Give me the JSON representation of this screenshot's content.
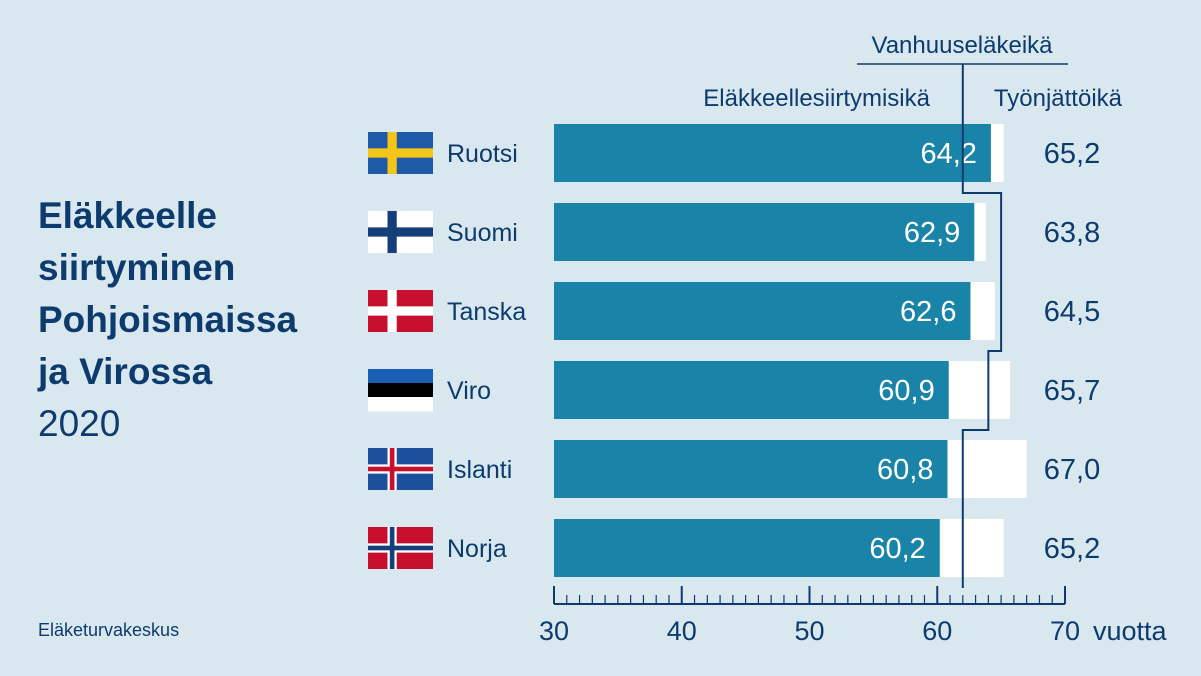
{
  "title": {
    "lines": [
      "Eläkkeelle",
      "siirtyminen",
      "Pohjoismaissa",
      "ja Virossa"
    ],
    "year": "2020"
  },
  "source": "Eläketurvakeskus",
  "colors": {
    "background": "#d9e8ef",
    "bar": "#1a84a8",
    "exit_bar": "#ffffff",
    "text": "#0d3b6e",
    "bar_label": "#ffffff"
  },
  "chart_data": {
    "type": "bar",
    "orientation": "horizontal",
    "categories": [
      "Ruotsi",
      "Suomi",
      "Tanska",
      "Viro",
      "Islanti",
      "Norja"
    ],
    "flags": [
      "sweden-flag",
      "finland-flag",
      "denmark-flag",
      "estonia-flag",
      "iceland-flag",
      "norway-flag"
    ],
    "series": [
      {
        "name": "Eläkkeellesiirtymisikä",
        "values": [
          64.2,
          62.9,
          62.6,
          60.9,
          60.8,
          60.2
        ],
        "labels": [
          "64,2",
          "62,9",
          "62,6",
          "60,9",
          "60,8",
          "60,2"
        ]
      },
      {
        "name": "Työnjättöikä",
        "values": [
          65.2,
          63.8,
          64.5,
          65.7,
          67.0,
          65.2
        ],
        "labels": [
          "65,2",
          "63,8",
          "64,5",
          "65,7",
          "67,0",
          "65,2"
        ]
      }
    ],
    "reference_line": {
      "name": "Vanhuuseläkeikä",
      "values": [
        62,
        65,
        65,
        64,
        62,
        62
      ]
    },
    "xlim": [
      30,
      70
    ],
    "xticks": [
      30,
      40,
      50,
      60,
      70
    ],
    "xtick_labels": [
      "30",
      "40",
      "50",
      "60",
      "70"
    ],
    "xunit": "vuotta",
    "minor_tick_step": 1,
    "grid": false
  }
}
